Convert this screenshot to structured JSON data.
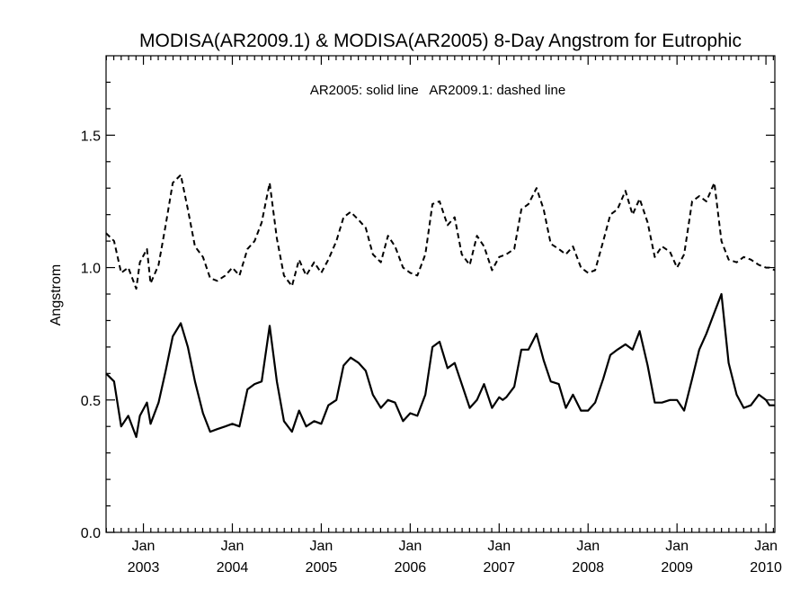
{
  "chart_data": {
    "type": "line",
    "title": "MODISA(AR2009.1) & MODISA(AR2005) 8-Day Angstrom for Eutrophic",
    "annotation": "AR2005: solid line   AR2009.1: dashed line",
    "ylabel": "Angstrom",
    "xlabel": "",
    "ylim": [
      0.0,
      1.8
    ],
    "xlim": [
      2002.58,
      2010.1
    ],
    "y_ticks": [
      {
        "value": 0.0,
        "label": "0.0"
      },
      {
        "value": 0.5,
        "label": "0.5"
      },
      {
        "value": 1.0,
        "label": "1.0"
      },
      {
        "value": 1.5,
        "label": "1.5"
      }
    ],
    "x_ticks": [
      {
        "value": 2003.0,
        "month": "Jan",
        "year": "2003"
      },
      {
        "value": 2004.0,
        "month": "Jan",
        "year": "2004"
      },
      {
        "value": 2005.0,
        "month": "Jan",
        "year": "2005"
      },
      {
        "value": 2006.0,
        "month": "Jan",
        "year": "2006"
      },
      {
        "value": 2007.0,
        "month": "Jan",
        "year": "2007"
      },
      {
        "value": 2008.0,
        "month": "Jan",
        "year": "2008"
      },
      {
        "value": 2009.0,
        "month": "Jan",
        "year": "2009"
      },
      {
        "value": 2010.0,
        "month": "Jan",
        "year": "2010"
      }
    ],
    "series": [
      {
        "style": "solid",
        "x": [
          2002.58,
          2002.67,
          2002.75,
          2002.83,
          2002.92,
          2002.96,
          2003.04,
          2003.08,
          2003.17,
          2003.25,
          2003.33,
          2003.42,
          2003.5,
          2003.58,
          2003.67,
          2003.75,
          2003.83,
          2003.92,
          2004.0,
          2004.08,
          2004.17,
          2004.25,
          2004.33,
          2004.42,
          2004.5,
          2004.58,
          2004.67,
          2004.75,
          2004.83,
          2004.92,
          2005.0,
          2005.08,
          2005.17,
          2005.25,
          2005.33,
          2005.42,
          2005.5,
          2005.58,
          2005.67,
          2005.75,
          2005.83,
          2005.92,
          2006.0,
          2006.08,
          2006.17,
          2006.25,
          2006.33,
          2006.42,
          2006.5,
          2006.58,
          2006.67,
          2006.75,
          2006.83,
          2006.92,
          2007.0,
          2007.04,
          2007.08,
          2007.17,
          2007.25,
          2007.33,
          2007.42,
          2007.5,
          2007.58,
          2007.67,
          2007.75,
          2007.83,
          2007.92,
          2008.0,
          2008.08,
          2008.17,
          2008.25,
          2008.33,
          2008.42,
          2008.5,
          2008.58,
          2008.67,
          2008.75,
          2008.83,
          2008.92,
          2009.0,
          2009.08,
          2009.17,
          2009.25,
          2009.33,
          2009.42,
          2009.5,
          2009.58,
          2009.67,
          2009.75,
          2009.83,
          2009.92,
          2010.0,
          2010.04,
          2010.1
        ],
        "y": [
          0.6,
          0.57,
          0.4,
          0.44,
          0.36,
          0.44,
          0.49,
          0.41,
          0.49,
          0.61,
          0.74,
          0.79,
          0.7,
          0.57,
          0.45,
          0.38,
          0.39,
          0.4,
          0.41,
          0.4,
          0.54,
          0.56,
          0.57,
          0.78,
          0.57,
          0.42,
          0.38,
          0.46,
          0.4,
          0.42,
          0.41,
          0.48,
          0.5,
          0.63,
          0.66,
          0.64,
          0.61,
          0.52,
          0.47,
          0.5,
          0.49,
          0.42,
          0.45,
          0.44,
          0.52,
          0.7,
          0.72,
          0.62,
          0.64,
          0.56,
          0.47,
          0.5,
          0.56,
          0.47,
          0.51,
          0.5,
          0.51,
          0.55,
          0.69,
          0.69,
          0.75,
          0.65,
          0.57,
          0.56,
          0.47,
          0.52,
          0.46,
          0.46,
          0.49,
          0.58,
          0.67,
          0.69,
          0.71,
          0.69,
          0.76,
          0.63,
          0.49,
          0.49,
          0.5,
          0.5,
          0.46,
          0.58,
          0.69,
          0.75,
          0.83,
          0.9,
          0.64,
          0.52,
          0.47,
          0.48,
          0.52,
          0.5,
          0.48,
          0.48
        ]
      },
      {
        "style": "dashed",
        "x": [
          2002.58,
          2002.67,
          2002.75,
          2002.83,
          2002.92,
          2002.96,
          2003.04,
          2003.08,
          2003.17,
          2003.25,
          2003.33,
          2003.42,
          2003.5,
          2003.58,
          2003.67,
          2003.75,
          2003.83,
          2003.92,
          2004.0,
          2004.08,
          2004.17,
          2004.25,
          2004.33,
          2004.42,
          2004.5,
          2004.58,
          2004.67,
          2004.75,
          2004.79,
          2004.83,
          2004.92,
          2005.0,
          2005.08,
          2005.17,
          2005.25,
          2005.33,
          2005.42,
          2005.5,
          2005.58,
          2005.67,
          2005.75,
          2005.83,
          2005.92,
          2006.0,
          2006.08,
          2006.17,
          2006.25,
          2006.33,
          2006.42,
          2006.5,
          2006.58,
          2006.67,
          2006.75,
          2006.79,
          2006.83,
          2006.92,
          2007.0,
          2007.08,
          2007.17,
          2007.25,
          2007.33,
          2007.42,
          2007.5,
          2007.58,
          2007.67,
          2007.75,
          2007.83,
          2007.92,
          2008.0,
          2008.08,
          2008.17,
          2008.25,
          2008.33,
          2008.42,
          2008.5,
          2008.58,
          2008.67,
          2008.75,
          2008.83,
          2008.92,
          2009.0,
          2009.08,
          2009.17,
          2009.25,
          2009.33,
          2009.42,
          2009.5,
          2009.58,
          2009.67,
          2009.75,
          2009.83,
          2009.92,
          2010.0,
          2010.04,
          2010.1
        ],
        "y": [
          1.13,
          1.1,
          0.98,
          1.0,
          0.92,
          1.02,
          1.07,
          0.94,
          1.01,
          1.16,
          1.32,
          1.35,
          1.22,
          1.08,
          1.04,
          0.96,
          0.95,
          0.97,
          1.0,
          0.97,
          1.07,
          1.1,
          1.17,
          1.32,
          1.11,
          0.97,
          0.93,
          1.03,
          1.0,
          0.97,
          1.02,
          0.98,
          1.03,
          1.1,
          1.19,
          1.21,
          1.18,
          1.15,
          1.05,
          1.02,
          1.12,
          1.08,
          1.0,
          0.98,
          0.97,
          1.05,
          1.24,
          1.25,
          1.16,
          1.19,
          1.05,
          1.01,
          1.12,
          1.1,
          1.08,
          0.99,
          1.04,
          1.05,
          1.07,
          1.22,
          1.24,
          1.3,
          1.22,
          1.09,
          1.07,
          1.05,
          1.08,
          1.0,
          0.98,
          0.99,
          1.1,
          1.2,
          1.22,
          1.29,
          1.2,
          1.26,
          1.17,
          1.04,
          1.08,
          1.06,
          1.0,
          1.05,
          1.25,
          1.27,
          1.25,
          1.32,
          1.1,
          1.03,
          1.02,
          1.04,
          1.03,
          1.01,
          1.0,
          1.0,
          0.99
        ]
      }
    ]
  }
}
